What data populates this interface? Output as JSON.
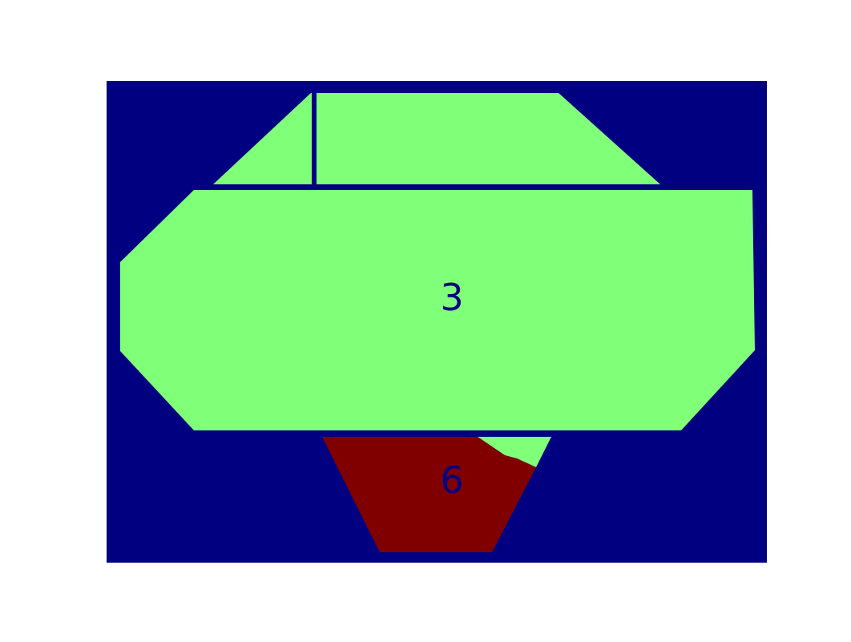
{
  "colors": {
    "background": "#000080",
    "region_3": "#80ff78",
    "region_6": "#800000",
    "label_text": "#000080",
    "page": "#ffffff"
  },
  "regions": [
    {
      "id": "region-3",
      "label": "3",
      "fill_key": "region_3"
    },
    {
      "id": "region-6",
      "label": "6",
      "fill_key": "region_6"
    }
  ]
}
